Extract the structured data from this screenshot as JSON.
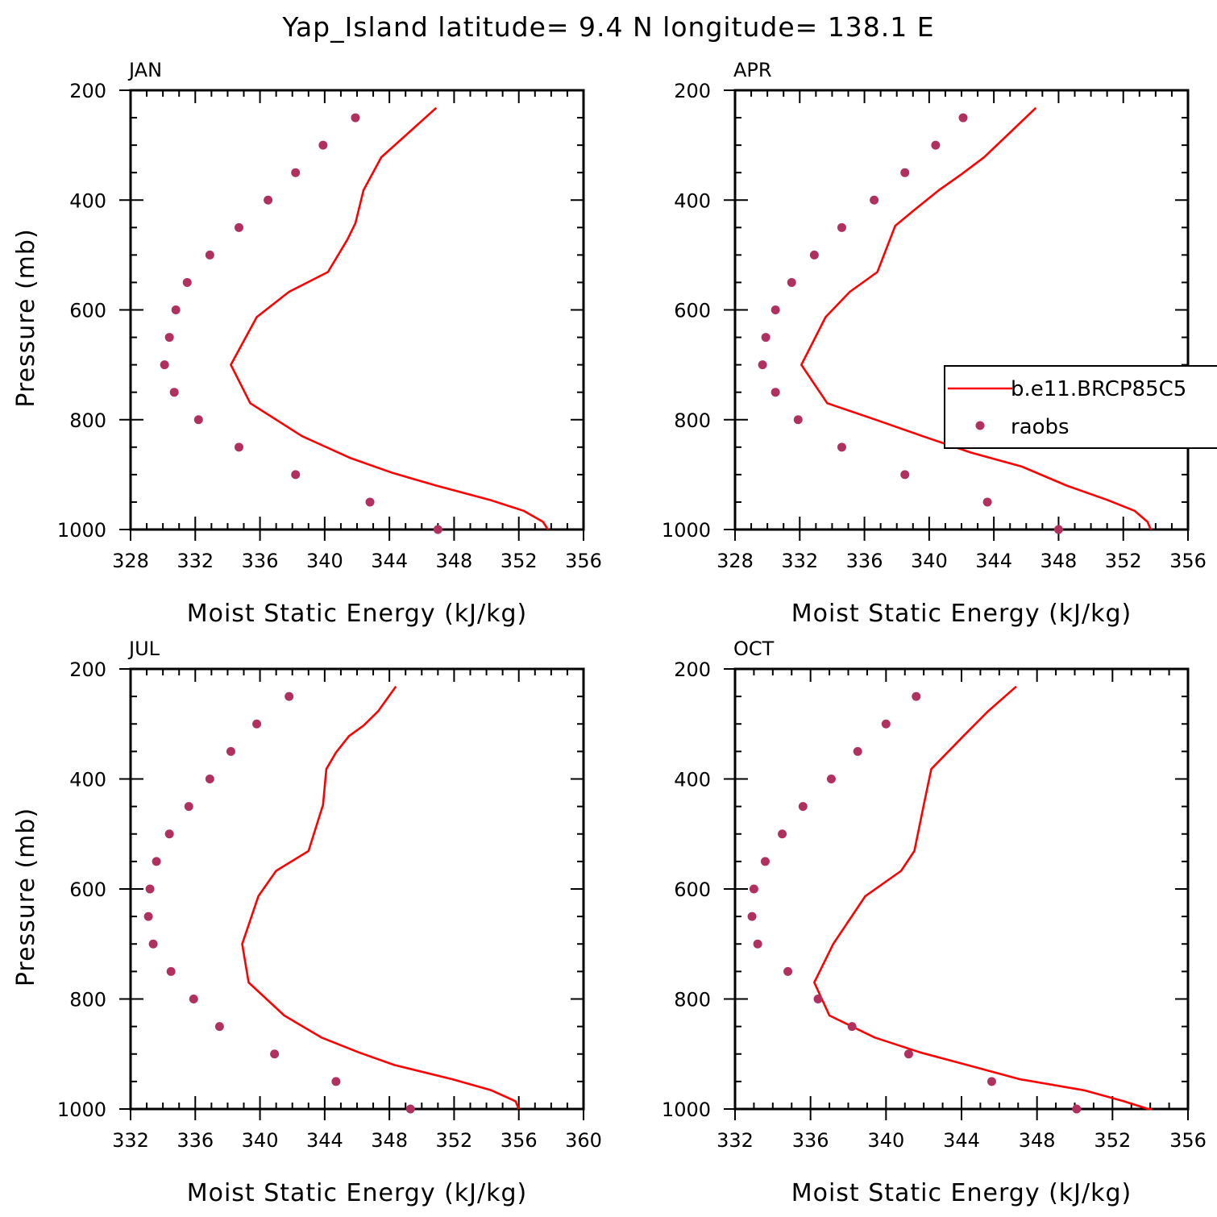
{
  "title": "Yap_Island  latitude= 9.4 N longitude= 138.1 E",
  "legend": {
    "model_label": "b.e11.BRCP85C5",
    "obs_label": "raobs"
  },
  "colors": {
    "model_line": "#ff0000",
    "obs_marker": "#b03060",
    "axes": "#000000"
  },
  "chart_data": [
    {
      "type": "line",
      "panel": "JAN",
      "xlabel": "Moist Static Energy (kJ/kg)",
      "ylabel": "Pressure (mb)",
      "xlim": [
        328,
        356
      ],
      "ylim": [
        1000,
        200
      ],
      "xticks": [
        328,
        332,
        336,
        340,
        344,
        348,
        352,
        356
      ],
      "yticks": [
        200,
        400,
        600,
        800,
        1000
      ],
      "grid": false,
      "series": [
        {
          "name": "b.e11.BRCP85C5",
          "kind": "line",
          "x": [
            346.9,
            345.2,
            343.5,
            342.4,
            341.9,
            341.4,
            340.2,
            337.8,
            335.8,
            334.2,
            335.4,
            338.6,
            341.6,
            344.2,
            346.9,
            350.2,
            352.3,
            353.5,
            353.8
          ],
          "y": [
            232,
            277,
            322,
            382,
            442,
            472,
            531,
            567,
            613,
            700,
            770,
            830,
            870,
            897,
            920,
            946,
            966,
            986,
            1000
          ]
        },
        {
          "name": "raobs",
          "kind": "scatter",
          "x": [
            341.9,
            339.9,
            338.2,
            336.5,
            334.7,
            332.9,
            331.5,
            330.8,
            330.4,
            330.1,
            330.7,
            332.2,
            334.7,
            338.2,
            342.8,
            347.0
          ],
          "y": [
            250,
            300,
            350,
            400,
            450,
            500,
            550,
            600,
            650,
            700,
            750,
            800,
            850,
            900,
            950,
            1000
          ]
        }
      ]
    },
    {
      "type": "line",
      "panel": "APR",
      "xlabel": "Moist Static Energy (kJ/kg)",
      "ylabel": "",
      "xlim": [
        328,
        356
      ],
      "ylim": [
        1000,
        200
      ],
      "xticks": [
        328,
        332,
        336,
        340,
        344,
        348,
        352,
        356
      ],
      "yticks": [
        200,
        400,
        600,
        800,
        1000
      ],
      "grid": false,
      "series": [
        {
          "name": "b.e11.BRCP85C5",
          "kind": "line",
          "x": [
            346.6,
            345.0,
            343.4,
            342.0,
            340.6,
            339.0,
            337.9,
            336.8,
            335.1,
            333.6,
            332.1,
            333.7,
            336.7,
            339.6,
            342.6,
            345.7,
            348.5,
            351.0,
            352.7,
            353.5,
            353.7
          ],
          "y": [
            232,
            277,
            322,
            353,
            382,
            420,
            447,
            531,
            567,
            613,
            700,
            770,
            800,
            830,
            860,
            885,
            920,
            946,
            966,
            986,
            1000
          ]
        },
        {
          "name": "raobs",
          "kind": "scatter",
          "x": [
            342.1,
            340.4,
            338.5,
            336.6,
            334.6,
            332.9,
            331.5,
            330.5,
            329.9,
            329.7,
            330.5,
            331.9,
            334.6,
            338.5,
            343.6,
            348.0
          ],
          "y": [
            250,
            300,
            350,
            400,
            450,
            500,
            550,
            600,
            650,
            700,
            750,
            800,
            850,
            900,
            950,
            1000
          ]
        }
      ]
    },
    {
      "type": "line",
      "panel": "JUL",
      "xlabel": "Moist Static Energy (kJ/kg)",
      "ylabel": "Pressure (mb)",
      "xlim": [
        332,
        360
      ],
      "ylim": [
        1000,
        200
      ],
      "xticks": [
        332,
        336,
        340,
        344,
        348,
        352,
        356,
        360
      ],
      "yticks": [
        200,
        400,
        600,
        800,
        1000
      ],
      "grid": false,
      "series": [
        {
          "name": "b.e11.BRCP85C5",
          "kind": "line",
          "x": [
            348.4,
            347.3,
            346.4,
            345.5,
            344.7,
            344.1,
            343.9,
            343.0,
            341.0,
            339.9,
            338.9,
            339.3,
            341.5,
            343.8,
            346.1,
            348.3,
            351.9,
            354.3,
            355.8,
            356.0
          ],
          "y": [
            232,
            277,
            303,
            322,
            352,
            382,
            447,
            531,
            567,
            613,
            700,
            770,
            830,
            870,
            897,
            920,
            946,
            966,
            986,
            1000
          ]
        },
        {
          "name": "raobs",
          "kind": "scatter",
          "x": [
            341.8,
            339.8,
            338.2,
            336.9,
            335.6,
            334.4,
            333.6,
            333.2,
            333.1,
            333.4,
            334.5,
            335.9,
            337.5,
            340.9,
            344.7,
            349.3
          ],
          "y": [
            250,
            300,
            350,
            400,
            450,
            500,
            550,
            600,
            650,
            700,
            750,
            800,
            850,
            900,
            950,
            1000
          ]
        }
      ]
    },
    {
      "type": "line",
      "panel": "OCT",
      "xlabel": "Moist Static Energy (kJ/kg)",
      "ylabel": "",
      "xlim": [
        332,
        356
      ],
      "ylim": [
        1000,
        200
      ],
      "xticks": [
        332,
        336,
        340,
        344,
        348,
        352,
        356
      ],
      "yticks": [
        200,
        400,
        600,
        800,
        1000
      ],
      "grid": false,
      "series": [
        {
          "name": "b.e11.BRCP85C5",
          "kind": "line",
          "x": [
            346.9,
            345.4,
            344.1,
            342.4,
            342.0,
            341.5,
            340.8,
            338.9,
            337.2,
            336.2,
            337.0,
            339.4,
            341.8,
            344.3,
            347.1,
            350.5,
            352.6,
            353.9,
            354.1
          ],
          "y": [
            232,
            277,
            322,
            382,
            447,
            531,
            567,
            613,
            700,
            770,
            830,
            870,
            897,
            920,
            946,
            966,
            986,
            1000,
            1000
          ]
        },
        {
          "name": "raobs",
          "kind": "scatter",
          "x": [
            341.6,
            340.0,
            338.5,
            337.1,
            335.6,
            334.5,
            333.6,
            333.0,
            332.9,
            333.2,
            334.8,
            336.4,
            338.2,
            341.2,
            345.6,
            350.1
          ],
          "y": [
            250,
            300,
            350,
            400,
            450,
            500,
            550,
            600,
            650,
            700,
            750,
            800,
            850,
            900,
            950,
            1000
          ]
        }
      ]
    }
  ]
}
